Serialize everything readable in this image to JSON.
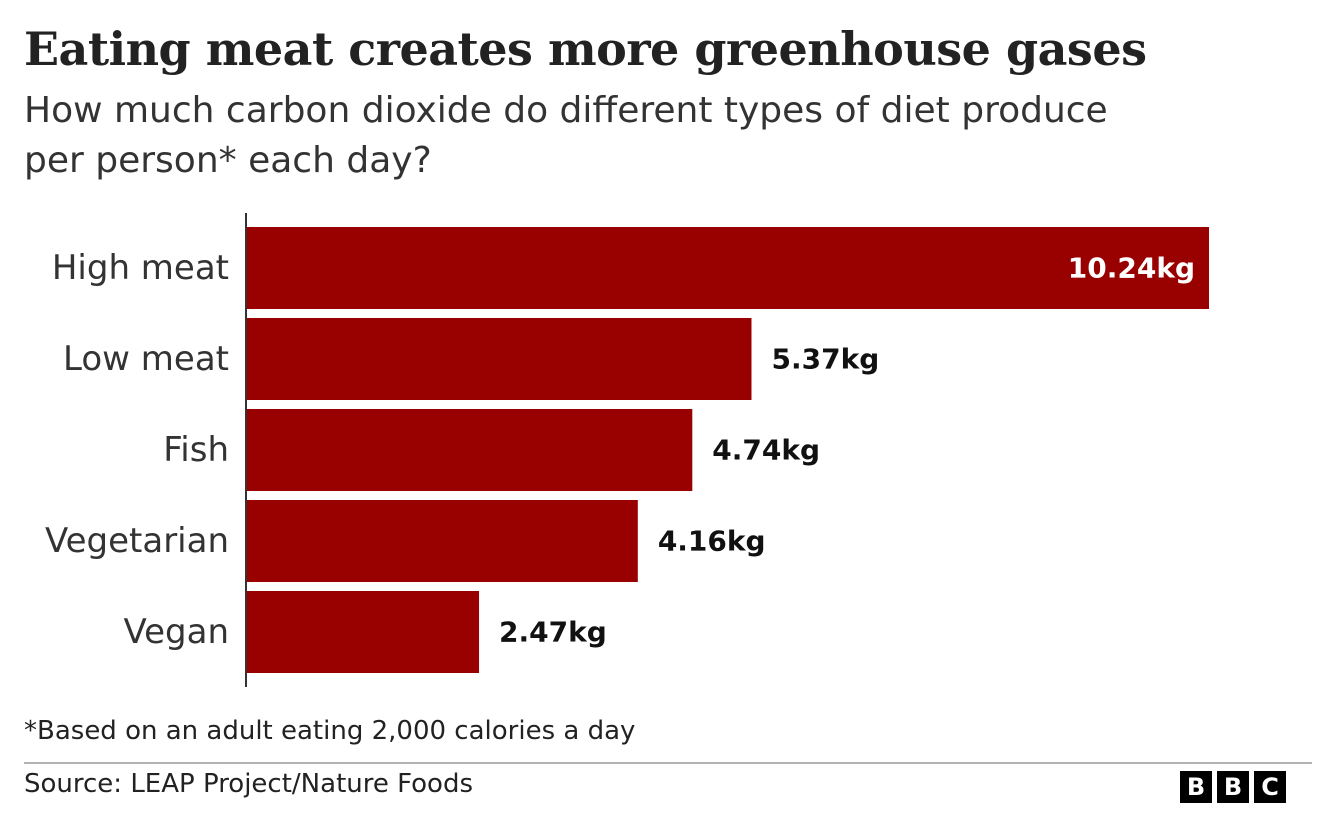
{
  "title": "Eating meat creates more greenhouse gases",
  "subtitle": "How much carbon dioxide do different types of diet produce per person* each day?",
  "chart_data": {
    "type": "bar",
    "orientation": "horizontal",
    "categories": [
      "High meat",
      "Low meat",
      "Fish",
      "Vegetarian",
      "Vegan"
    ],
    "values": [
      10.24,
      5.37,
      4.74,
      4.16,
      2.47
    ],
    "value_labels": [
      "10.24kg",
      "5.37kg",
      "4.74kg",
      "4.16kg",
      "2.47kg"
    ],
    "unit": "kg",
    "xlim": [
      0,
      10.24
    ],
    "bar_color": "#990000",
    "inside_label_color": "#ffffff",
    "outside_label_color": "#111111"
  },
  "footnote": "*Based on an adult eating 2,000 calories a day",
  "source": "Source: LEAP Project/Nature Foods",
  "logo": {
    "letters": [
      "B",
      "B",
      "C"
    ]
  }
}
